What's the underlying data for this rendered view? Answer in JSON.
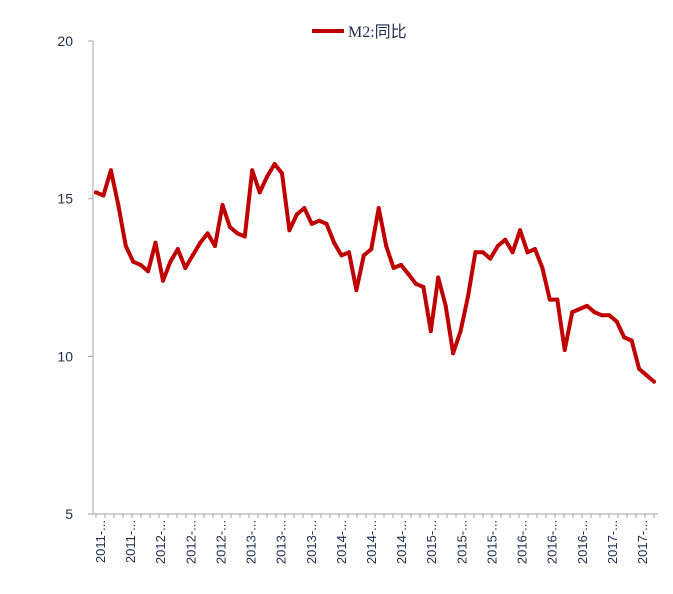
{
  "chart_data": {
    "type": "line",
    "title": "",
    "xlabel": "",
    "ylabel": "",
    "ylim": [
      5,
      20
    ],
    "yticks": [
      5,
      10,
      15,
      20
    ],
    "xtick_labels": [
      "2011-...",
      "2011-...",
      "2012-...",
      "2012-...",
      "2012-...",
      "2013-...",
      "2013-...",
      "2013-...",
      "2014-...",
      "2014-...",
      "2014-...",
      "2015-...",
      "2015-...",
      "2015-...",
      "2016-...",
      "2016-...",
      "2016-...",
      "2017-...",
      "2017-..."
    ],
    "grid": false,
    "legend_position": "top-center",
    "series": [
      {
        "name": "M2:同比",
        "color": "#c00000",
        "values": [
          15.2,
          15.1,
          15.9,
          14.8,
          13.5,
          13.0,
          12.9,
          12.7,
          13.6,
          12.4,
          13.0,
          13.4,
          12.8,
          13.2,
          13.6,
          13.9,
          13.5,
          14.8,
          14.1,
          13.9,
          13.8,
          15.9,
          15.2,
          15.7,
          16.1,
          15.8,
          14.0,
          14.5,
          14.7,
          14.2,
          14.3,
          14.2,
          13.6,
          13.2,
          13.3,
          12.1,
          13.2,
          13.4,
          14.7,
          13.5,
          12.8,
          12.9,
          12.6,
          12.3,
          12.2,
          10.8,
          12.5,
          11.6,
          10.1,
          10.8,
          11.9,
          13.3,
          13.3,
          13.1,
          13.5,
          13.7,
          13.3,
          14.0,
          13.3,
          13.4,
          12.8,
          11.8,
          11.8,
          10.2,
          11.4,
          11.5,
          11.6,
          11.4,
          11.3,
          11.3,
          11.1,
          10.6,
          10.5,
          9.6,
          9.4,
          9.2
        ]
      }
    ]
  }
}
